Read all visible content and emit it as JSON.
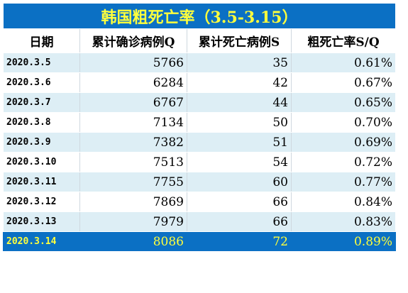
{
  "title": "韩国粗死亡率（3.5-3.15）",
  "columns": [
    "日期",
    "累计确诊病例Q",
    "累计死亡病例S",
    "粗死亡率S/Q"
  ],
  "rows": [
    {
      "date": "2020.3.5",
      "confirmed": "5766",
      "deaths": "35",
      "rate": "0.61%"
    },
    {
      "date": "2020.3.6",
      "confirmed": "6284",
      "deaths": "42",
      "rate": "0.67%"
    },
    {
      "date": "2020.3.7",
      "confirmed": "6767",
      "deaths": "44",
      "rate": "0.65%"
    },
    {
      "date": "2020.3.8",
      "confirmed": "7134",
      "deaths": "50",
      "rate": "0.70%"
    },
    {
      "date": "2020.3.9",
      "confirmed": "7382",
      "deaths": "51",
      "rate": "0.69%"
    },
    {
      "date": "2020.3.10",
      "confirmed": "7513",
      "deaths": "54",
      "rate": "0.72%"
    },
    {
      "date": "2020.3.11",
      "confirmed": "7755",
      "deaths": "60",
      "rate": "0.77%"
    },
    {
      "date": "2020.3.12",
      "confirmed": "7869",
      "deaths": "66",
      "rate": "0.84%"
    },
    {
      "date": "2020.3.13",
      "confirmed": "7979",
      "deaths": "66",
      "rate": "0.83%"
    },
    {
      "date": "2020.3.14",
      "confirmed": "8086",
      "deaths": "72",
      "rate": "0.89%"
    }
  ],
  "colors": {
    "title_bg": "#0b70c4",
    "title_text": "#ffff3c",
    "row_shade": "#ddeef5"
  }
}
